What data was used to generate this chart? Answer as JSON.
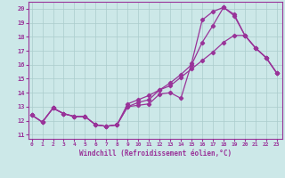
{
  "xlabel": "Windchill (Refroidissement éolien,°C)",
  "bg_color": "#cce8e8",
  "grid_color": "#aacccc",
  "line_color": "#993399",
  "x_ticks": [
    0,
    1,
    2,
    3,
    4,
    5,
    6,
    7,
    8,
    9,
    10,
    11,
    12,
    13,
    14,
    15,
    16,
    17,
    18,
    19,
    20,
    21,
    22,
    23
  ],
  "y_ticks": [
    11,
    12,
    13,
    14,
    15,
    16,
    17,
    18,
    19,
    20
  ],
  "ylim": [
    10.7,
    20.5
  ],
  "xlim": [
    -0.3,
    23.5
  ],
  "line1_x": [
    0,
    1,
    2,
    3,
    4,
    5,
    6,
    7,
    8,
    9,
    10,
    11,
    12,
    13,
    14,
    15,
    16,
    17,
    18,
    19,
    20,
    21,
    22,
    23
  ],
  "line1_y": [
    12.4,
    11.9,
    12.9,
    12.5,
    12.3,
    12.3,
    11.7,
    11.6,
    11.7,
    13.0,
    13.1,
    13.2,
    13.9,
    14.0,
    13.6,
    16.1,
    19.2,
    19.8,
    20.1,
    19.6,
    18.1,
    17.2,
    16.5,
    15.4
  ],
  "line2_x": [
    0,
    1,
    2,
    3,
    4,
    5,
    6,
    7,
    8,
    9,
    10,
    11,
    12,
    13,
    14,
    15,
    16,
    17,
    18,
    19,
    20,
    21,
    22,
    23
  ],
  "line2_y": [
    12.4,
    11.9,
    12.9,
    12.5,
    12.3,
    12.3,
    11.7,
    11.6,
    11.7,
    13.2,
    13.5,
    13.8,
    14.2,
    14.5,
    15.1,
    15.7,
    16.3,
    16.9,
    17.6,
    18.1,
    18.1,
    17.2,
    16.5,
    15.4
  ],
  "line3_x": [
    0,
    1,
    2,
    3,
    4,
    5,
    6,
    7,
    8,
    9,
    10,
    11,
    12,
    13,
    14,
    15,
    16,
    17,
    18,
    19,
    20,
    21,
    22,
    23
  ],
  "line3_y": [
    12.4,
    11.9,
    12.9,
    12.5,
    12.3,
    12.3,
    11.7,
    11.6,
    11.7,
    13.0,
    13.3,
    13.5,
    14.2,
    14.7,
    15.3,
    16.0,
    17.6,
    18.8,
    20.1,
    19.5,
    18.1,
    17.2,
    16.5,
    15.4
  ]
}
